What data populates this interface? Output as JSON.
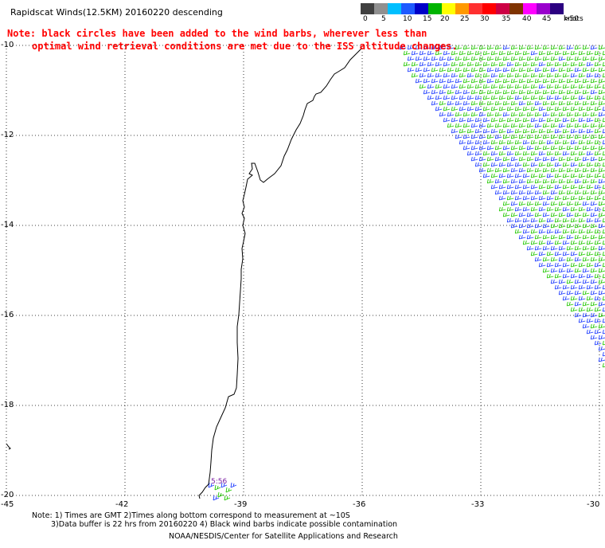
{
  "title": "Rapidscat Winds(12.5KM) 20160220 descending",
  "note": {
    "line1": "Note: black circles have been added to the wind barbs, wherever less than",
    "line2": "optimal wind retrieval conditions are met due to the ISS altitude changes."
  },
  "wind_scale": {
    "labels": [
      "0",
      "5",
      "10",
      "15",
      "20",
      "25",
      "30",
      "35",
      "40",
      "45",
      ">50"
    ],
    "units": "knots",
    "colors": [
      "#404040",
      "#909090",
      "#00bfff",
      "#1e5aff",
      "#0000c8",
      "#00b400",
      "#ffff00",
      "#ff9900",
      "#ff3030",
      "#ff0000",
      "#cc0044",
      "#7f3300",
      "#ff00ff",
      "#9900cc",
      "#2b0080"
    ]
  },
  "map": {
    "lat_labels": [
      "-10",
      "-12",
      "-14",
      "-16",
      "-18",
      "-20"
    ],
    "lon_labels": [
      "-45",
      "-42",
      "-39",
      "-36",
      "-33",
      "-30"
    ],
    "time_label": "5:56"
  },
  "footer": {
    "line1": "Note: 1) Times are GMT 2)Times along bottom correspond to measurement at ~10S",
    "line2": "3)Data buffer is 22 hrs from 20160220 4) Black wind barbs indicate possible contamination",
    "line3": "NOAA/NESDIS/Center for Satellite Applications and Research"
  }
}
